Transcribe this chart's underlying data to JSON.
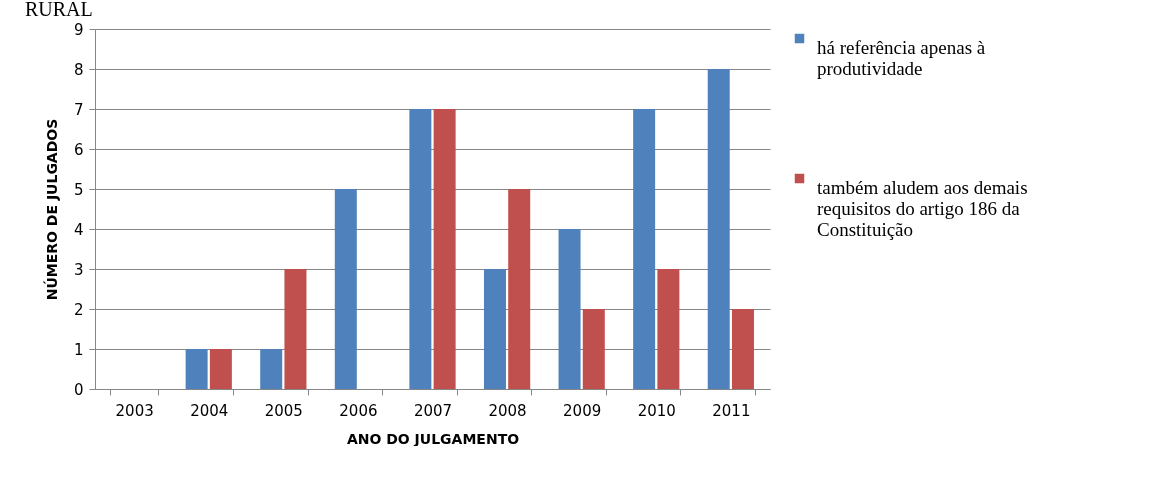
{
  "chart_data": {
    "type": "bar",
    "title": "RURAL",
    "xlabel": "ANO DO JULGAMENTO",
    "ylabel": "NÚMERO DE JULGADOS",
    "categories": [
      "2003",
      "2004",
      "2005",
      "2006",
      "2007",
      "2008",
      "2009",
      "2010",
      "2011"
    ],
    "series": [
      {
        "name": "há referência apenas à produtividade",
        "color": "#4f81bd",
        "values": [
          0,
          1,
          1,
          5,
          7,
          3,
          4,
          7,
          8
        ]
      },
      {
        "name": "também aludem aos demais requisitos do artigo 186 da Constituição",
        "color": "#c0504d",
        "values": [
          0,
          1,
          3,
          0,
          7,
          5,
          2,
          3,
          2
        ]
      }
    ],
    "ylim": [
      0,
      9
    ],
    "yticks": [
      0,
      1,
      2,
      3,
      4,
      5,
      6,
      7,
      8,
      9
    ],
    "grid": "y",
    "legend": "right"
  }
}
